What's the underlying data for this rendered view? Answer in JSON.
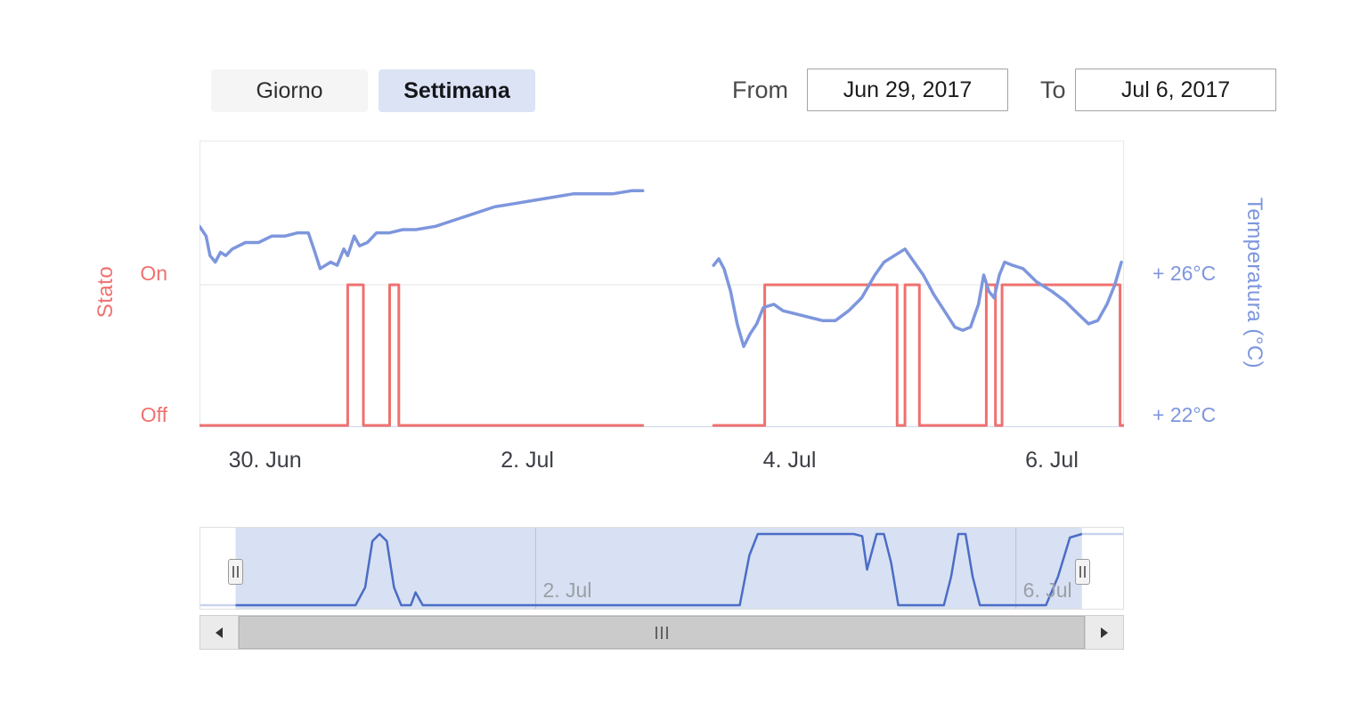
{
  "controls": {
    "range_buttons": [
      {
        "label": "Giorno",
        "active": false
      },
      {
        "label": "Settimana",
        "active": true
      }
    ],
    "from_label": "From",
    "from_value": "Jun 29, 2017",
    "to_label": "To",
    "to_value": "Jul 6, 2017"
  },
  "chart_data": {
    "type": "line",
    "title": "",
    "legend": false,
    "x_encoding": "day index: 30 = Jun 30, 31 = Jul 1, 32 = Jul 2, 34 = Jul 4, 36 = Jul 6",
    "x_axis": {
      "domain": [
        29.5,
        36.55
      ],
      "ticks": [
        {
          "day": 30,
          "label": "30. Jun"
        },
        {
          "day": 32,
          "label": "2. Jul"
        },
        {
          "day": 34,
          "label": "4. Jul"
        },
        {
          "day": 36,
          "label": "6. Jul"
        }
      ]
    },
    "y_axis_left": {
      "title": "Stato",
      "tick_labels": [
        "On",
        "Off"
      ],
      "color": "#ef716f"
    },
    "y_axis_right": {
      "title": "Temperatura (°C)",
      "tick_labels": [
        "+ 26°C",
        "+ 22°C"
      ],
      "tick_values": [
        26,
        22
      ],
      "color": "#7d96dd"
    },
    "series": [
      {
        "name": "Stato",
        "type": "step",
        "color": "#ef716f",
        "value_encoding": "0 = Off, 1 = On",
        "segments": [
          [
            [
              29.5,
              0
            ],
            [
              30.63,
              0
            ],
            [
              30.63,
              1
            ],
            [
              30.75,
              1
            ],
            [
              30.75,
              0
            ],
            [
              30.95,
              0
            ],
            [
              30.95,
              1
            ],
            [
              31.02,
              1
            ],
            [
              31.02,
              0
            ],
            [
              32.88,
              0
            ]
          ],
          [
            [
              33.42,
              0
            ],
            [
              33.81,
              0
            ],
            [
              33.81,
              1
            ],
            [
              34.82,
              1
            ],
            [
              34.82,
              0
            ],
            [
              34.88,
              0
            ],
            [
              34.88,
              1
            ],
            [
              34.99,
              1
            ],
            [
              34.99,
              0
            ],
            [
              35.5,
              0
            ],
            [
              35.5,
              1
            ],
            [
              35.57,
              1
            ],
            [
              35.57,
              0
            ],
            [
              35.62,
              0
            ],
            [
              35.62,
              1
            ],
            [
              36.52,
              1
            ],
            [
              36.52,
              0
            ],
            [
              36.55,
              0
            ]
          ]
        ]
      },
      {
        "name": "Temperatura",
        "type": "line",
        "unit": "°C",
        "color": "#7d96dd",
        "segments": [
          [
            [
              29.5,
              27.8
            ],
            [
              29.55,
              27.5
            ],
            [
              29.58,
              26.9
            ],
            [
              29.62,
              26.7
            ],
            [
              29.66,
              27.0
            ],
            [
              29.7,
              26.9
            ],
            [
              29.75,
              27.1
            ],
            [
              29.85,
              27.3
            ],
            [
              29.95,
              27.3
            ],
            [
              30.05,
              27.5
            ],
            [
              30.15,
              27.5
            ],
            [
              30.25,
              27.6
            ],
            [
              30.33,
              27.6
            ],
            [
              30.38,
              27.0
            ],
            [
              30.42,
              26.5
            ],
            [
              30.5,
              26.7
            ],
            [
              30.55,
              26.6
            ],
            [
              30.6,
              27.1
            ],
            [
              30.63,
              26.9
            ],
            [
              30.68,
              27.5
            ],
            [
              30.72,
              27.2
            ],
            [
              30.78,
              27.3
            ],
            [
              30.85,
              27.6
            ],
            [
              30.95,
              27.6
            ],
            [
              31.05,
              27.7
            ],
            [
              31.15,
              27.7
            ],
            [
              31.3,
              27.8
            ],
            [
              31.45,
              28.0
            ],
            [
              31.6,
              28.2
            ],
            [
              31.75,
              28.4
            ],
            [
              31.9,
              28.5
            ],
            [
              32.05,
              28.6
            ],
            [
              32.2,
              28.7
            ],
            [
              32.35,
              28.8
            ],
            [
              32.5,
              28.8
            ],
            [
              32.65,
              28.8
            ],
            [
              32.8,
              28.9
            ],
            [
              32.88,
              28.9
            ]
          ],
          [
            [
              33.42,
              26.6
            ],
            [
              33.46,
              26.8
            ],
            [
              33.5,
              26.5
            ],
            [
              33.55,
              25.8
            ],
            [
              33.6,
              24.8
            ],
            [
              33.65,
              24.1
            ],
            [
              33.7,
              24.5
            ],
            [
              33.75,
              24.8
            ],
            [
              33.8,
              25.3
            ],
            [
              33.88,
              25.4
            ],
            [
              33.95,
              25.2
            ],
            [
              34.05,
              25.1
            ],
            [
              34.15,
              25.0
            ],
            [
              34.25,
              24.9
            ],
            [
              34.35,
              24.9
            ],
            [
              34.45,
              25.2
            ],
            [
              34.55,
              25.6
            ],
            [
              34.65,
              26.3
            ],
            [
              34.72,
              26.7
            ],
            [
              34.8,
              26.9
            ],
            [
              34.88,
              27.1
            ],
            [
              34.95,
              26.7
            ],
            [
              35.02,
              26.3
            ],
            [
              35.1,
              25.7
            ],
            [
              35.18,
              25.2
            ],
            [
              35.26,
              24.7
            ],
            [
              35.32,
              24.6
            ],
            [
              35.38,
              24.7
            ],
            [
              35.44,
              25.4
            ],
            [
              35.48,
              26.3
            ],
            [
              35.52,
              25.8
            ],
            [
              35.56,
              25.6
            ],
            [
              35.6,
              26.3
            ],
            [
              35.64,
              26.7
            ],
            [
              35.7,
              26.6
            ],
            [
              35.78,
              26.5
            ],
            [
              35.88,
              26.1
            ],
            [
              36.0,
              25.8
            ],
            [
              36.1,
              25.5
            ],
            [
              36.2,
              25.1
            ],
            [
              36.28,
              24.8
            ],
            [
              36.35,
              24.9
            ],
            [
              36.42,
              25.4
            ],
            [
              36.48,
              26.0
            ],
            [
              36.53,
              26.7
            ]
          ]
        ]
      }
    ],
    "navigator": {
      "domain": [
        29.2,
        36.9
      ],
      "selection": [
        29.5,
        36.55
      ],
      "tick_labels": [
        {
          "day": 32,
          "label": "2. Jul"
        },
        {
          "day": 36,
          "label": "6. Jul"
        }
      ],
      "line_color": "#4a6dc5",
      "fill_color": "#d8e0f3",
      "series": [
        [
          29.2,
          0
        ],
        [
          30.5,
          0
        ],
        [
          30.58,
          0.25
        ],
        [
          30.64,
          0.9
        ],
        [
          30.7,
          1
        ],
        [
          30.76,
          0.9
        ],
        [
          30.82,
          0.25
        ],
        [
          30.88,
          0
        ],
        [
          30.96,
          0
        ],
        [
          31.0,
          0.18
        ],
        [
          31.06,
          0
        ],
        [
          33.7,
          0
        ],
        [
          33.78,
          0.7
        ],
        [
          33.85,
          1
        ],
        [
          34.65,
          1
        ],
        [
          34.72,
          0.97
        ],
        [
          34.76,
          0.5
        ],
        [
          34.8,
          0.75
        ],
        [
          34.84,
          1
        ],
        [
          34.9,
          1
        ],
        [
          34.96,
          0.6
        ],
        [
          35.02,
          0
        ],
        [
          35.4,
          0
        ],
        [
          35.46,
          0.4
        ],
        [
          35.52,
          1
        ],
        [
          35.58,
          1
        ],
        [
          35.64,
          0.4
        ],
        [
          35.7,
          0
        ],
        [
          36.25,
          0
        ],
        [
          36.35,
          0.4
        ],
        [
          36.45,
          0.95
        ],
        [
          36.55,
          1
        ],
        [
          36.9,
          1
        ]
      ]
    }
  }
}
